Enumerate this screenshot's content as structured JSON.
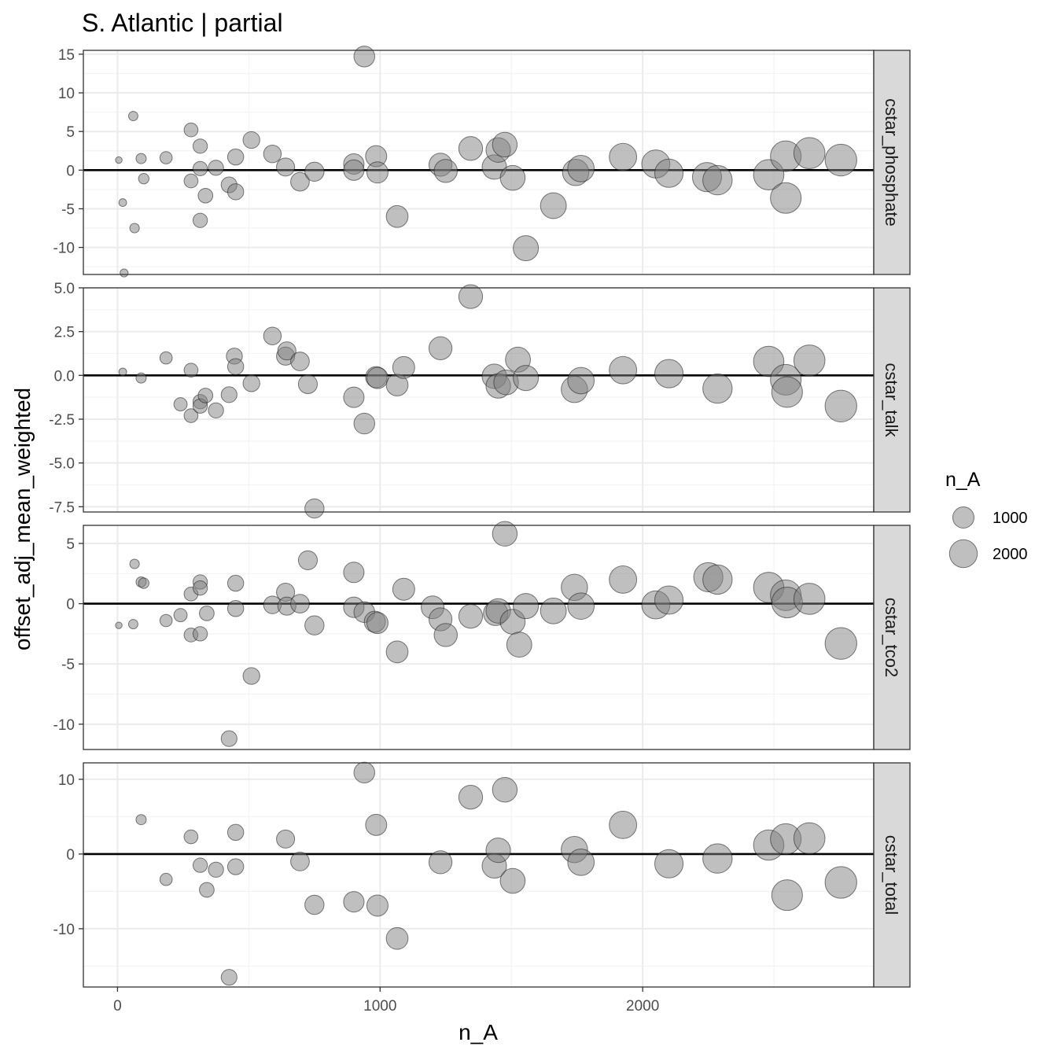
{
  "title": "S. Atlantic | partial",
  "chart_data": {
    "type": "scatter",
    "x_label": "n_A",
    "y_label": "offset_adj_mean_weighted",
    "x_ticks": [
      0,
      1000,
      2000
    ],
    "x_range": [
      -130,
      2880
    ],
    "legend": {
      "title": "n_A",
      "entries": [
        1000,
        2000
      ],
      "placement": "right"
    },
    "grid": true,
    "panels": [
      {
        "strip": "cstar_phosphate",
        "y_range": [
          -13.5,
          15.5
        ],
        "y_ticks": [
          15,
          10,
          5,
          0,
          -5,
          -10
        ],
        "y_tick_labels": [
          "15",
          "10",
          "5",
          "0",
          "-5",
          "-10"
        ],
        "points": [
          [
            5,
            1.3
          ],
          [
            20,
            -4.2
          ],
          [
            25,
            -13.3
          ],
          [
            60,
            7
          ],
          [
            65,
            -7.5
          ],
          [
            90,
            1.5
          ],
          [
            100,
            -1.1
          ],
          [
            185,
            1.6
          ],
          [
            280,
            5.2
          ],
          [
            280,
            -1.4
          ],
          [
            315,
            3.1
          ],
          [
            315,
            0.2
          ],
          [
            315,
            -6.5
          ],
          [
            335,
            -3.3
          ],
          [
            375,
            0.3
          ],
          [
            425,
            -1.9
          ],
          [
            450,
            -2.8
          ],
          [
            450,
            1.7
          ],
          [
            510,
            3.9
          ],
          [
            590,
            2.1
          ],
          [
            640,
            0.4
          ],
          [
            695,
            -1.5
          ],
          [
            750,
            -0.2
          ],
          [
            900,
            0.8
          ],
          [
            900,
            0
          ],
          [
            940,
            14.7
          ],
          [
            985,
            1.8
          ],
          [
            990,
            -0.3
          ],
          [
            1065,
            -6
          ],
          [
            1230,
            0.7
          ],
          [
            1250,
            -0.1
          ],
          [
            1345,
            2.8
          ],
          [
            1435,
            0.4
          ],
          [
            1450,
            2.6
          ],
          [
            1475,
            3.3
          ],
          [
            1505,
            -1
          ],
          [
            1555,
            -10.1
          ],
          [
            1660,
            -4.6
          ],
          [
            1745,
            -0.3
          ],
          [
            1765,
            0.2
          ],
          [
            1925,
            1.7
          ],
          [
            2050,
            0.8
          ],
          [
            2100,
            -0.4
          ],
          [
            2245,
            -0.9
          ],
          [
            2285,
            -1.3
          ],
          [
            2480,
            -0.6
          ],
          [
            2545,
            1.8
          ],
          [
            2545,
            -3.6
          ],
          [
            2635,
            2.2
          ],
          [
            2755,
            1.3
          ]
        ]
      },
      {
        "strip": "cstar_talk",
        "y_range": [
          -7.8,
          5.0
        ],
        "y_ticks": [
          5,
          2.5,
          0,
          -2.5,
          -5,
          -7.5
        ],
        "y_tick_labels": [
          "5.0",
          "2.5",
          "0.0",
          "-2.5",
          "-5.0",
          "-7.5"
        ],
        "points": [
          [
            20,
            0.2
          ],
          [
            90,
            -0.15
          ],
          [
            185,
            1
          ],
          [
            240,
            -1.65
          ],
          [
            280,
            0.3
          ],
          [
            280,
            -2.3
          ],
          [
            315,
            -1.5
          ],
          [
            315,
            -1.75
          ],
          [
            335,
            -1.15
          ],
          [
            375,
            -2
          ],
          [
            425,
            -1.1
          ],
          [
            445,
            1.1
          ],
          [
            450,
            0.5
          ],
          [
            510,
            -0.45
          ],
          [
            590,
            2.25
          ],
          [
            640,
            1.1
          ],
          [
            645,
            1.4
          ],
          [
            695,
            0.8
          ],
          [
            725,
            -0.5
          ],
          [
            750,
            -7.6
          ],
          [
            900,
            -1.25
          ],
          [
            940,
            -2.75
          ],
          [
            985,
            -0.1
          ],
          [
            990,
            -0.15
          ],
          [
            1065,
            -0.55
          ],
          [
            1090,
            0.45
          ],
          [
            1230,
            1.55
          ],
          [
            1345,
            4.5
          ],
          [
            1435,
            -0.05
          ],
          [
            1450,
            -0.6
          ],
          [
            1480,
            -0.4
          ],
          [
            1525,
            0.9
          ],
          [
            1555,
            -0.15
          ],
          [
            1740,
            -0.8
          ],
          [
            1765,
            -0.3
          ],
          [
            1925,
            0.3
          ],
          [
            2100,
            0.1
          ],
          [
            2285,
            -0.75
          ],
          [
            2480,
            0.8
          ],
          [
            2545,
            -0.25
          ],
          [
            2550,
            -0.95
          ],
          [
            2635,
            0.85
          ],
          [
            2755,
            -1.75
          ]
        ]
      },
      {
        "strip": "cstar_tco2",
        "y_range": [
          -12.1,
          6.5
        ],
        "y_ticks": [
          5,
          0,
          -5,
          -10
        ],
        "y_tick_labels": [
          "5",
          "0",
          "-5",
          "-10"
        ],
        "points": [
          [
            5,
            -1.8
          ],
          [
            60,
            -1.7
          ],
          [
            65,
            3.3
          ],
          [
            90,
            1.8
          ],
          [
            100,
            1.7
          ],
          [
            185,
            -1.4
          ],
          [
            240,
            -0.95
          ],
          [
            280,
            0.8
          ],
          [
            280,
            -2.6
          ],
          [
            315,
            1.8
          ],
          [
            315,
            1.3
          ],
          [
            315,
            -2.5
          ],
          [
            340,
            -0.8
          ],
          [
            425,
            -11.2
          ],
          [
            450,
            1.7
          ],
          [
            450,
            -0.4
          ],
          [
            510,
            -6
          ],
          [
            590,
            -0.1
          ],
          [
            640,
            0.95
          ],
          [
            645,
            -0.2
          ],
          [
            695,
            0
          ],
          [
            725,
            3.6
          ],
          [
            750,
            -1.8
          ],
          [
            900,
            2.6
          ],
          [
            900,
            -0.3
          ],
          [
            940,
            -0.7
          ],
          [
            980,
            -1.5
          ],
          [
            990,
            -1.6
          ],
          [
            1065,
            -4
          ],
          [
            1090,
            1.2
          ],
          [
            1200,
            -0.3
          ],
          [
            1230,
            -1.3
          ],
          [
            1250,
            -2.6
          ],
          [
            1345,
            -1.05
          ],
          [
            1440,
            -0.8
          ],
          [
            1450,
            -0.6
          ],
          [
            1475,
            5.8
          ],
          [
            1505,
            -1.5
          ],
          [
            1530,
            -3.4
          ],
          [
            1555,
            -0.2
          ],
          [
            1660,
            -0.6
          ],
          [
            1740,
            1.35
          ],
          [
            1765,
            -0.2
          ],
          [
            1925,
            2
          ],
          [
            2050,
            -0.1
          ],
          [
            2100,
            0.3
          ],
          [
            2250,
            2.2
          ],
          [
            2285,
            2
          ],
          [
            2480,
            1.35
          ],
          [
            2545,
            0.7
          ],
          [
            2550,
            0.1
          ],
          [
            2635,
            0.4
          ],
          [
            2755,
            -3.3
          ]
        ]
      },
      {
        "strip": "cstar_total",
        "y_range": [
          -17.8,
          12.2
        ],
        "y_ticks": [
          10,
          0,
          -10
        ],
        "y_tick_labels": [
          "10",
          "0",
          "-10"
        ],
        "points": [
          [
            90,
            4.6
          ],
          [
            185,
            -3.4
          ],
          [
            280,
            2.3
          ],
          [
            315,
            -1.5
          ],
          [
            340,
            -4.8
          ],
          [
            375,
            -2.1
          ],
          [
            425,
            -16.5
          ],
          [
            450,
            2.9
          ],
          [
            450,
            -1.7
          ],
          [
            640,
            2
          ],
          [
            695,
            -1
          ],
          [
            750,
            -6.8
          ],
          [
            900,
            -6.4
          ],
          [
            940,
            10.9
          ],
          [
            985,
            3.9
          ],
          [
            990,
            -6.9
          ],
          [
            1065,
            -11.3
          ],
          [
            1230,
            -1.1
          ],
          [
            1345,
            7.6
          ],
          [
            1435,
            -1.6
          ],
          [
            1450,
            0.5
          ],
          [
            1475,
            8.6
          ],
          [
            1505,
            -3.6
          ],
          [
            1740,
            0.6
          ],
          [
            1765,
            -1.1
          ],
          [
            1925,
            3.9
          ],
          [
            2100,
            -1.3
          ],
          [
            2285,
            -0.6
          ],
          [
            2480,
            1.2
          ],
          [
            2545,
            2
          ],
          [
            2550,
            -5.5
          ],
          [
            2635,
            2.1
          ],
          [
            2755,
            -3.8
          ]
        ]
      }
    ]
  }
}
